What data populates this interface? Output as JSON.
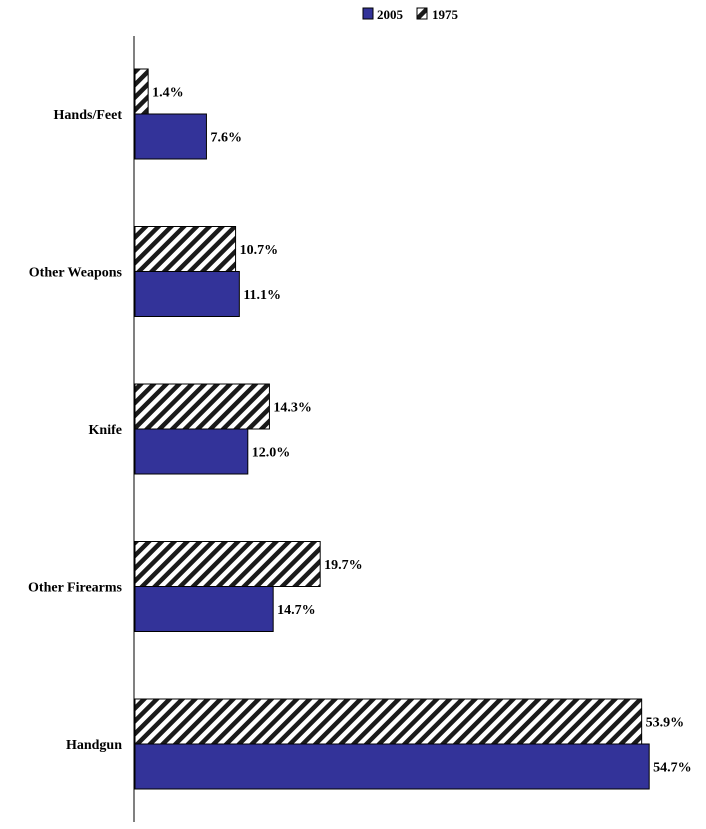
{
  "chart_data": {
    "type": "bar",
    "orientation": "horizontal",
    "title": "",
    "xlabel": "",
    "ylabel": "",
    "xlim": [
      0,
      55
    ],
    "grid": false,
    "legend_position": "top-right",
    "categories": [
      "Hands/Feet",
      "Other Weapons",
      "Knife",
      "Other Firearms",
      "Handgun"
    ],
    "series": [
      {
        "name": "1975",
        "values": [
          1.4,
          10.7,
          14.3,
          19.7,
          53.9
        ],
        "value_labels": [
          "1.4%",
          "10.7%",
          "14.3%",
          "19.7%",
          "53.9%"
        ],
        "color": "#ffffff",
        "fill_style": "diagonal-hatch"
      },
      {
        "name": "2005",
        "values": [
          7.6,
          11.1,
          12.0,
          14.7,
          54.7
        ],
        "value_labels": [
          "7.6%",
          "11.1%",
          "12.0%",
          "14.7%",
          "54.7%"
        ],
        "color": "#333399",
        "fill_style": "solid"
      }
    ],
    "legend": [
      {
        "label": "2005",
        "color": "#333399",
        "fill_style": "solid"
      },
      {
        "label": "1975",
        "color": "#ffffff",
        "fill_style": "diagonal-hatch"
      }
    ]
  }
}
